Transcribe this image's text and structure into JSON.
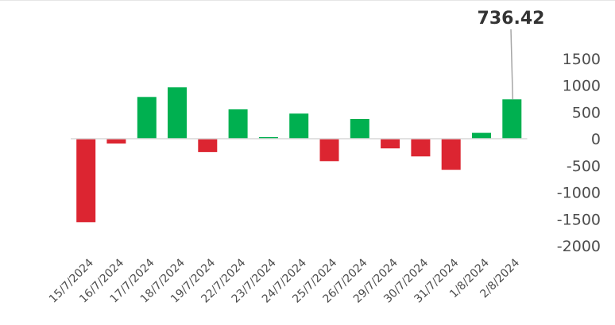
{
  "chart_data": {
    "type": "bar",
    "title": "",
    "xlabel": "",
    "ylabel": "",
    "categories": [
      "15/7/2024",
      "16/7/2024",
      "17/7/2024",
      "18/7/2024",
      "19/7/2024",
      "22/7/2024",
      "23/7/2024",
      "24/7/2024",
      "25/7/2024",
      "26/7/2024",
      "29/7/2024",
      "30/7/2024",
      "31/7/2024",
      "1/8/2024",
      "2/8/2024"
    ],
    "values": [
      -1560,
      -90,
      780,
      960,
      -250,
      550,
      30,
      470,
      -420,
      370,
      -180,
      -330,
      -580,
      110,
      736.42
    ],
    "ylim": [
      -2000,
      1500
    ],
    "yticks": [
      1500,
      1000,
      500,
      0,
      -500,
      -1000,
      -1500,
      -2000
    ],
    "y_axis_position": "right",
    "grid": false,
    "positive_color": "#00b050",
    "negative_color": "#dc2531",
    "callout": {
      "label": "736.42",
      "category_index": 14
    }
  }
}
